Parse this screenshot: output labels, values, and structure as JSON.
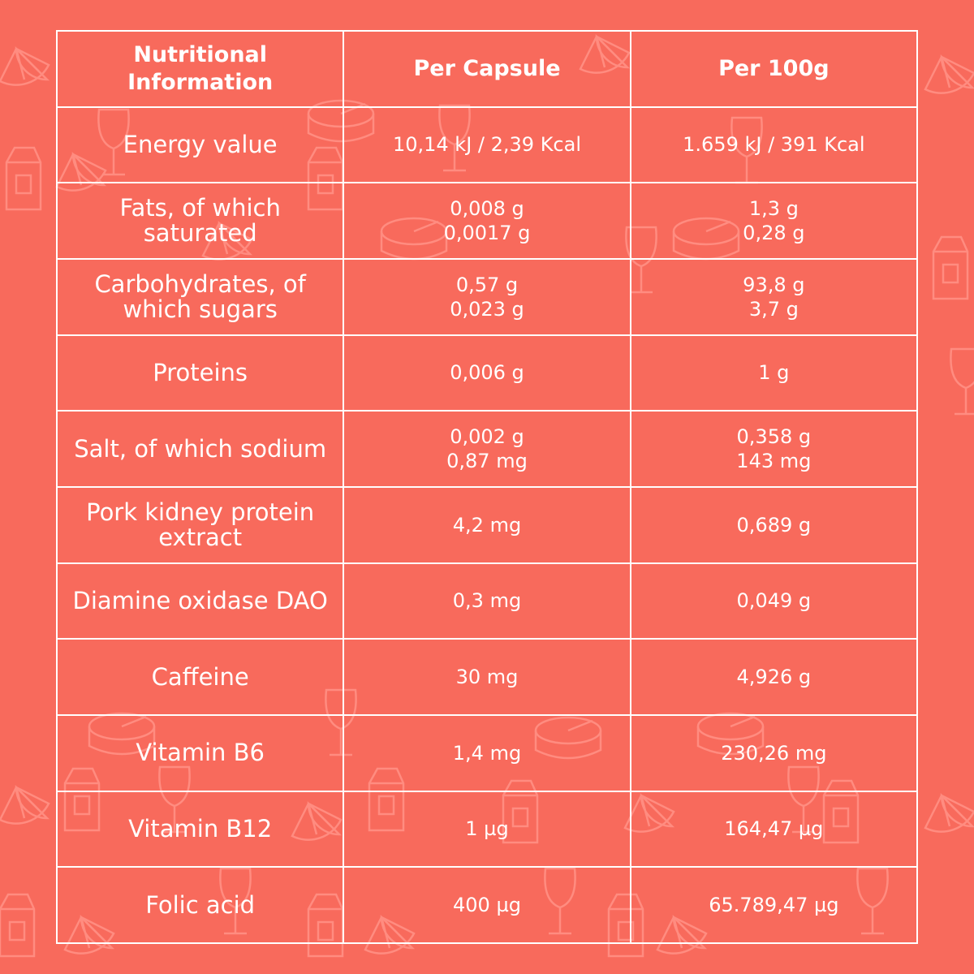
{
  "header": {
    "col1": "Nutritional Information",
    "col2": "Per Capsule",
    "col3": "Per 100g"
  },
  "rows": [
    {
      "label": "Energy value",
      "per_capsule": [
        "10,14 kJ / 2,39 Kcal"
      ],
      "per_100g": [
        "1.659 kJ / 391 Kcal"
      ]
    },
    {
      "label": "Fats, of which saturated",
      "per_capsule": [
        "0,008 g",
        "0,0017 g"
      ],
      "per_100g": [
        "1,3 g",
        "0,28 g"
      ]
    },
    {
      "label": "Carbohydrates, of which sugars",
      "per_capsule": [
        "0,57 g",
        "0,023 g"
      ],
      "per_100g": [
        "93,8 g",
        "3,7 g"
      ]
    },
    {
      "label": "Proteins",
      "per_capsule": [
        "0,006 g"
      ],
      "per_100g": [
        "1 g"
      ]
    },
    {
      "label": "Salt, of which sodium",
      "per_capsule": [
        "0,002 g",
        "0,87 mg"
      ],
      "per_100g": [
        "0,358 g",
        "143 mg"
      ]
    },
    {
      "label": "Pork kidney protein extract",
      "per_capsule": [
        "4,2 mg"
      ],
      "per_100g": [
        "0,689 g"
      ]
    },
    {
      "label": "Diamine oxidase DAO",
      "per_capsule": [
        "0,3 mg"
      ],
      "per_100g": [
        "0,049 g"
      ]
    },
    {
      "label": "Caffeine",
      "per_capsule": [
        "30 mg"
      ],
      "per_100g": [
        "4,926 g"
      ]
    },
    {
      "label": "Vitamin B6",
      "per_capsule": [
        "1,4 mg"
      ],
      "per_100g": [
        "230,26 mg"
      ]
    },
    {
      "label": "Vitamin B12",
      "per_capsule": [
        "1 µg"
      ],
      "per_100g": [
        "164,47 µg"
      ]
    },
    {
      "label": "Folic acid",
      "per_capsule": [
        "400 µg"
      ],
      "per_100g": [
        "65.789,47 µg"
      ]
    }
  ],
  "colors": {
    "background": "#f86a5c",
    "text": "#ffffff",
    "pattern": "#ff8c80"
  },
  "background_icons": [
    "lemon-slice-icon",
    "wine-glass-icon",
    "cheese-icon",
    "milk-carton-icon"
  ]
}
